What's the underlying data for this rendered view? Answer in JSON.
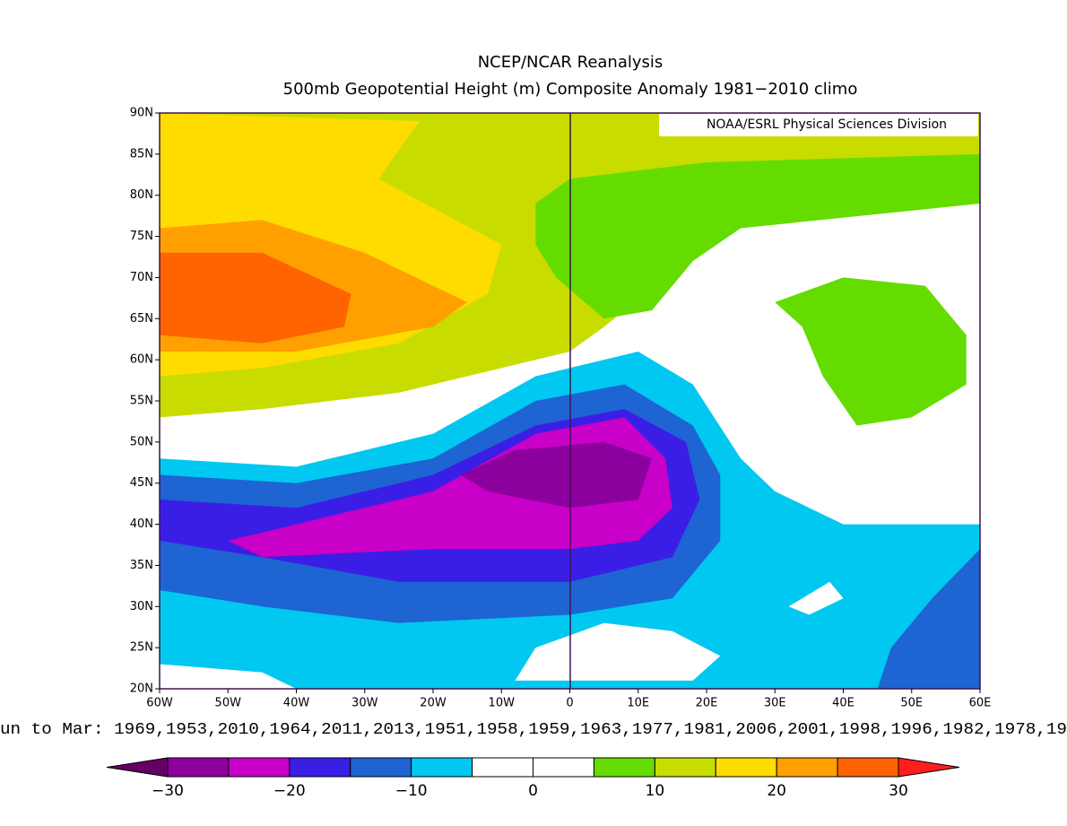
{
  "header": {
    "title": "NCEP/NCAR Reanalysis",
    "subtitle": "500mb Geopotential Height (m) Composite Anomaly 1981−2010 climo"
  },
  "credit": "NOAA/ESRL Physical Sciences Division",
  "map": {
    "xlim": [
      -60,
      60
    ],
    "ylim": [
      20,
      90
    ],
    "xticks": [
      {
        "value": -60,
        "label": "60W"
      },
      {
        "value": -50,
        "label": "50W"
      },
      {
        "value": -40,
        "label": "40W"
      },
      {
        "value": -30,
        "label": "30W"
      },
      {
        "value": -20,
        "label": "20W"
      },
      {
        "value": -10,
        "label": "10W"
      },
      0,
      {
        "value": 10,
        "label": "10E"
      },
      {
        "value": 20,
        "label": "20E"
      },
      {
        "value": 30,
        "label": "30E"
      },
      {
        "value": 40,
        "label": "40E"
      },
      {
        "value": 50,
        "label": "50E"
      },
      {
        "value": 60,
        "label": "60E"
      }
    ],
    "yticks": [
      {
        "value": 20,
        "label": "20N"
      },
      {
        "value": 25,
        "label": "25N"
      },
      {
        "value": 30,
        "label": "30N"
      },
      {
        "value": 35,
        "label": "35N"
      },
      {
        "value": 40,
        "label": "40N"
      },
      {
        "value": 45,
        "label": "45N"
      },
      {
        "value": 50,
        "label": "50N"
      },
      {
        "value": 55,
        "label": "55N"
      },
      {
        "value": 60,
        "label": "60N"
      },
      {
        "value": 65,
        "label": "65N"
      },
      {
        "value": 70,
        "label": "70N"
      },
      {
        "value": 75,
        "label": "75N"
      },
      {
        "value": 80,
        "label": "80N"
      },
      {
        "value": 85,
        "label": "85N"
      },
      {
        "value": 90,
        "label": "90N"
      }
    ]
  },
  "caption": "un to Mar: 1969,1953,2010,1964,2011,2013,1951,1958,1959,1963,1977,1981,2006,2001,1998,1996,1982,1978,19",
  "colorbar": {
    "bounds": [
      -30,
      -25,
      -20,
      -15,
      -10,
      -5,
      0,
      5,
      10,
      15,
      20,
      25,
      30
    ],
    "colors": [
      "#8c009e",
      "#c800c8",
      "#3a1ee6",
      "#1e64d2",
      "#00c8f0",
      "#ffffff",
      "#ffffff",
      "#64dc00",
      "#c8dc00",
      "#ffdc00",
      "#ffa000",
      "#ff6400"
    ],
    "under_color": "#640064",
    "over_color": "#ff1e1e",
    "ticks": [
      {
        "value": -30,
        "label": "−30"
      },
      {
        "value": -20,
        "label": "−20"
      },
      {
        "value": -10,
        "label": "−10"
      },
      0,
      10,
      20,
      30
    ]
  }
}
